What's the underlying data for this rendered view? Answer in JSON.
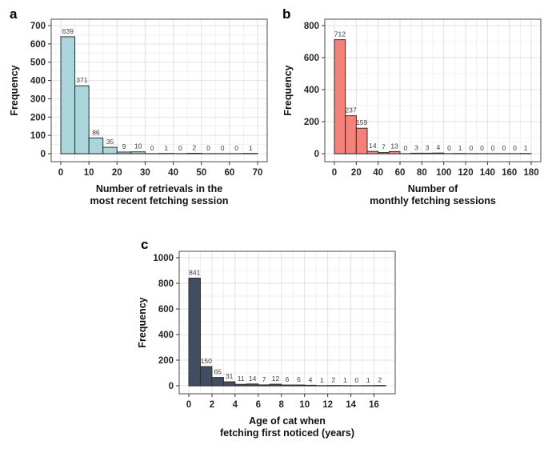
{
  "figure": {
    "background": "#ffffff",
    "grid_major_color": "#e2e2e2",
    "grid_minor_color": "#f0f0f0",
    "panel_border_color": "#4a4a4a",
    "axis_text_color": "#262626",
    "bar_label_color": "#3d3d3d"
  },
  "chart_data": [
    {
      "type": "bar",
      "panel_label": "a",
      "title": "",
      "ylabel": "Frequency",
      "xlabel_lines": [
        "Number of retrievals in the",
        "most recent fetching session"
      ],
      "bin_start": 0,
      "bin_width": 5,
      "values": [
        639,
        371,
        86,
        35,
        9,
        10,
        0,
        1,
        0,
        2,
        0,
        0,
        0,
        1
      ],
      "x_ticks": [
        0,
        10,
        20,
        30,
        40,
        50,
        60,
        70
      ],
      "y_ticks": [
        0,
        100,
        200,
        300,
        400,
        500,
        600,
        700
      ],
      "xlim": [
        0,
        70
      ],
      "ylim": [
        0,
        735
      ],
      "bar_color": "#aad5db",
      "bar_border": "#2d2d2d",
      "grid": "major+minor",
      "legend": "none"
    },
    {
      "type": "bar",
      "panel_label": "b",
      "title": "",
      "ylabel": "Frequency",
      "xlabel_lines": [
        "Number of",
        "monthly fetching sessions"
      ],
      "bin_start": 0,
      "bin_width": 10,
      "values": [
        712,
        237,
        159,
        14,
        7,
        13,
        0,
        3,
        3,
        4,
        0,
        1,
        0,
        0,
        0,
        0,
        0,
        1
      ],
      "x_ticks": [
        0,
        20,
        40,
        60,
        80,
        100,
        120,
        140,
        160,
        180
      ],
      "y_ticks": [
        0,
        200,
        400,
        600,
        800
      ],
      "xlim": [
        0,
        180
      ],
      "ylim": [
        0,
        840
      ],
      "bar_color": "#f5827a",
      "bar_border": "#2d2d2d",
      "grid": "major+minor",
      "legend": "none"
    },
    {
      "type": "bar",
      "panel_label": "c",
      "title": "",
      "ylabel": "Frequency",
      "xlabel_lines": [
        "Age of cat when",
        "fetching first noticed (years)"
      ],
      "bin_start": 0,
      "bin_width": 1,
      "values": [
        841,
        150,
        65,
        31,
        11,
        14,
        7,
        12,
        6,
        6,
        4,
        1,
        2,
        1,
        0,
        1,
        2
      ],
      "x_ticks": [
        0,
        2,
        4,
        6,
        8,
        10,
        12,
        14,
        16
      ],
      "y_ticks": [
        0,
        200,
        400,
        600,
        800,
        1000
      ],
      "xlim": [
        0,
        17
      ],
      "ylim": [
        0,
        1050
      ],
      "bar_color": "#414d61",
      "bar_border": "#2d2d2d",
      "grid": "major+minor",
      "legend": "none"
    }
  ]
}
